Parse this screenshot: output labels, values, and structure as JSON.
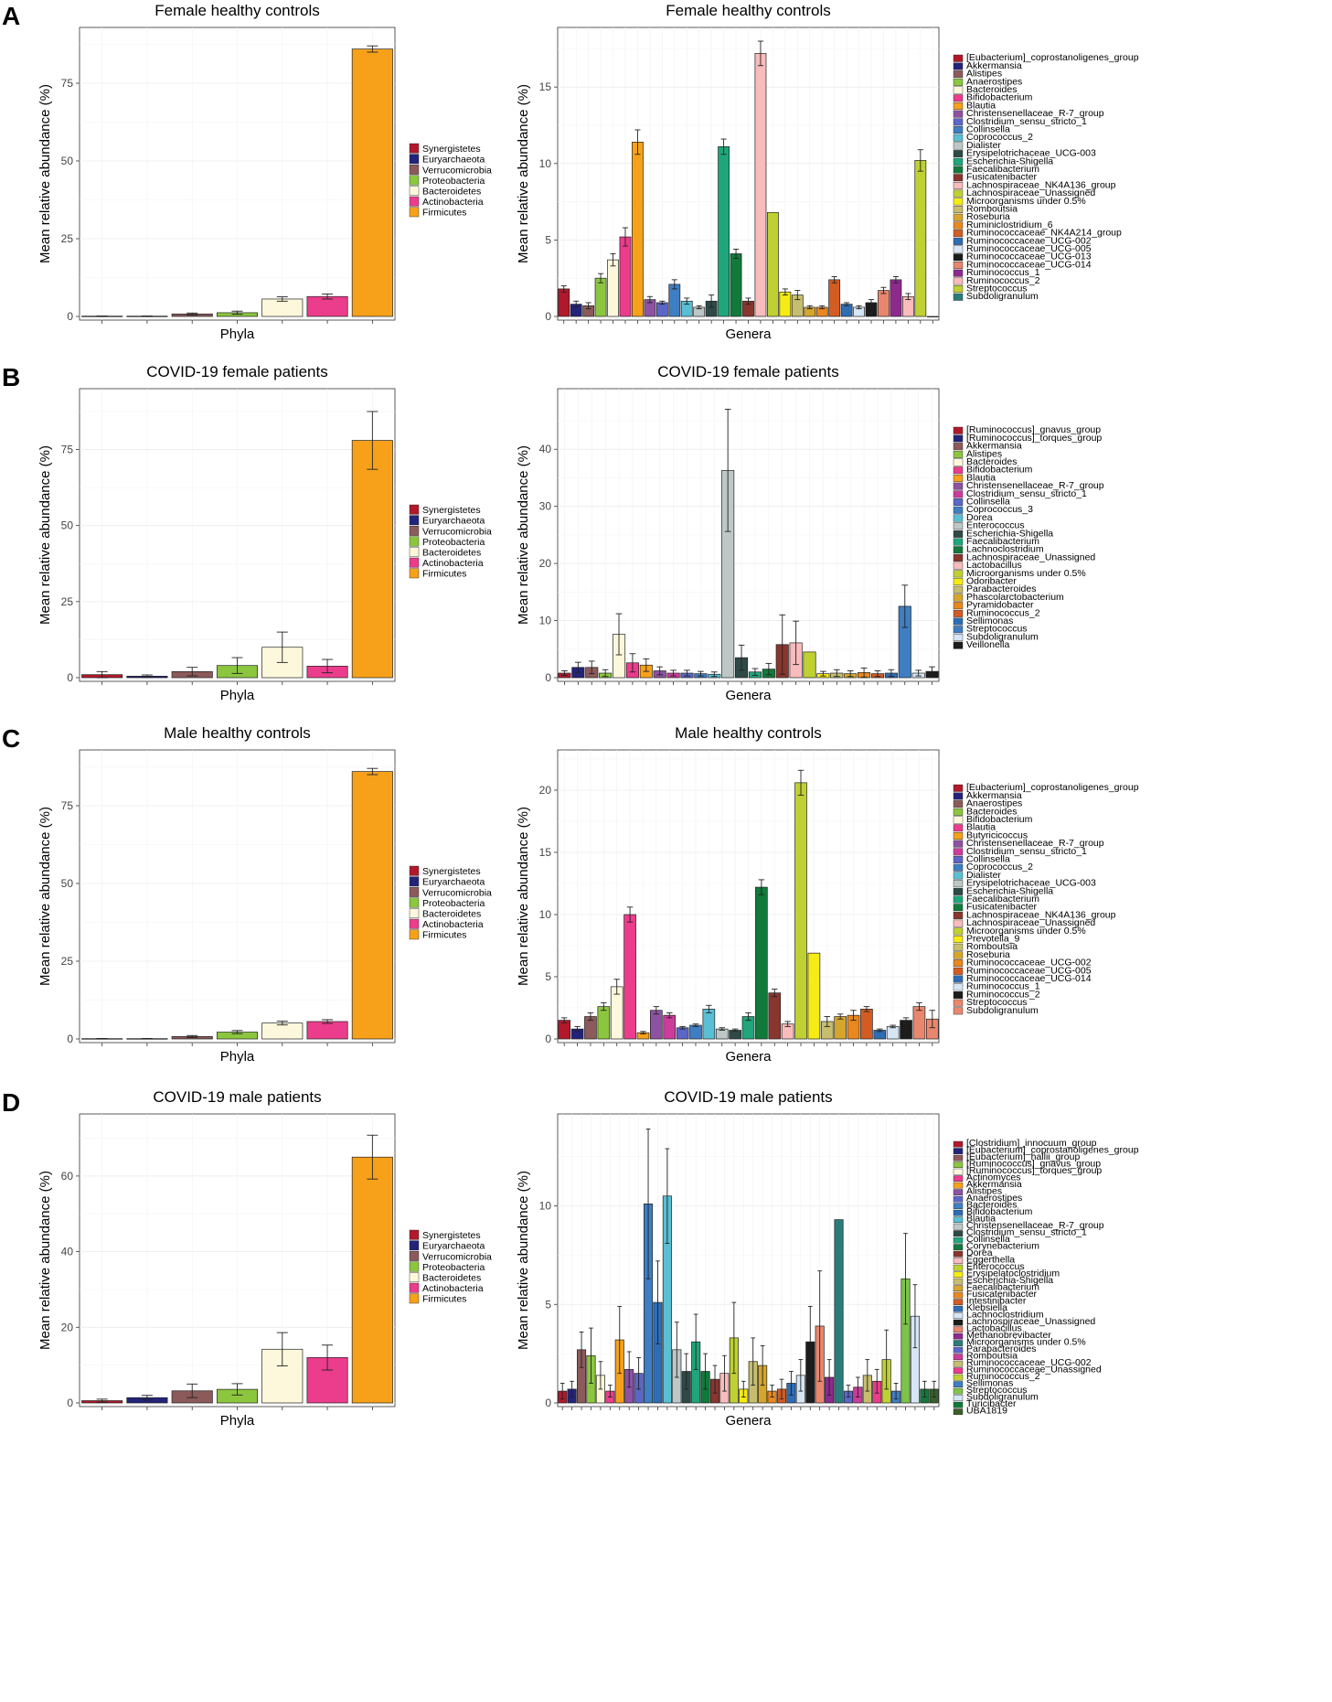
{
  "colors": {
    "Synergistetes": "#B2182B",
    "Euryarchaeota": "#23237A",
    "Verrucomicrobia": "#8C5A5A",
    "Proteobacteria": "#8CC63F",
    "Bacteroidetes": "#FDF8DC",
    "Actinobacteria": "#EC3C8C",
    "Firmicutes": "#F7A11A"
  },
  "genus_palette": [
    "#B2182B",
    "#23237A",
    "#8C5A5A",
    "#8CC63F",
    "#FDF8DC",
    "#EC3C8C",
    "#F7A11A",
    "#8E52A2",
    "#5C66C8",
    "#3F7EC3",
    "#59BFD4",
    "#BDC8C6",
    "#2E4A48",
    "#1FA67A",
    "#117A3B",
    "#88362E",
    "#F9BBBB",
    "#BFD132",
    "#F6EB14",
    "#C6BE6E",
    "#D6A62C",
    "#E8881E",
    "#D35C22",
    "#2E6DB4",
    "#D6E6F4",
    "#1C1C1C",
    "#E8876E",
    "#8E2A8E",
    "#2A7C7C",
    "#3A5E2A"
  ],
  "panels": [
    {
      "letter": "A",
      "phyla_chart": {
        "type": "bar",
        "title": "Female healthy controls",
        "xlabel": "Phyla",
        "ylabel": "Mean relative abundance (%)",
        "ylim": [
          0,
          90
        ],
        "yticks": [
          0,
          25,
          50,
          75
        ],
        "categories": [
          "Synergistetes",
          "Euryarchaeota",
          "Verrucomicrobia",
          "Proteobacteria",
          "Bacteroidetes",
          "Actinobacteria",
          "Firmicutes"
        ],
        "values": [
          0.1,
          0.1,
          0.8,
          1.2,
          5.6,
          6.4,
          86.0
        ],
        "errors": [
          0.05,
          0.05,
          0.3,
          0.5,
          0.7,
          0.8,
          1.0
        ]
      },
      "genera_chart": {
        "type": "bar",
        "title": "Female healthy controls",
        "xlabel": "Genera",
        "ylabel": "Mean relative abundance (%)",
        "ylim": [
          0,
          18.3
        ],
        "yticks": [
          0,
          5,
          10,
          15
        ],
        "categories": [
          "[Eubacterium]_coprostanoligenes_group",
          "Akkermansia",
          "Alistipes",
          "Anaerostipes",
          "Bacteroides",
          "Bifidobacterium",
          "Blautia",
          "Christensenellaceae_R-7_group",
          "Clostridium_sensu_stricto_1",
          "Collinsella",
          "Coprococcus_2",
          "Dialister",
          "Erysipelotrichaceae_UCG-003",
          "Escherichia-Shigella",
          "Faecalibacterium",
          "Fusicatenibacter",
          "Lachnospiraceae_NK4A136_group",
          "Lachnospiraceae_Unassigned",
          "Microorganisms under 0.5%",
          "Romboutsia",
          "Roseburia",
          "Ruminiclostridium_6",
          "Ruminococcaceae_NK4A214_group",
          "Ruminococcaceae_UCG-002",
          "Ruminococcaceae_UCG-005",
          "Ruminococcaceae_UCG-013",
          "Ruminococcaceae_UCG-014",
          "Ruminococcus_1",
          "Ruminococcus_2",
          "Streptococcus",
          "Subdoligranulum"
        ],
        "colors": [
          "#B2182B",
          "#23237A",
          "#8C5A5A",
          "#8CC63F",
          "#FDF8DC",
          "#EC3C8C",
          "#F7A11A",
          "#8E52A2",
          "#5C66C8",
          "#3F7EC3",
          "#59BFD4",
          "#BDC8C6",
          "#2E4A48",
          "#1FA67A",
          "#117A3B",
          "#88362E",
          "#F9BBBB",
          "#BFD132",
          "#F6EB14",
          "#C6BE6E",
          "#D6A62C",
          "#E8881E",
          "#D35C22",
          "#2E6DB4",
          "#D6E6F4",
          "#1C1C1C",
          "#E8876E",
          "#8E2A8E",
          "#F9BBBB",
          "#BFD132",
          "#2A7C7C"
        ],
        "values": [
          1.8,
          0.8,
          0.7,
          2.5,
          3.7,
          5.2,
          11.4,
          1.1,
          0.9,
          2.1,
          1.0,
          0.6,
          1.0,
          11.1,
          4.1,
          1.0,
          17.2,
          6.8,
          1.6,
          1.4,
          0.6,
          0.6,
          2.4,
          0.8,
          0.6,
          0.9,
          1.7,
          2.4,
          1.3,
          10.2,
          0.0
        ],
        "errors": [
          0.2,
          0.2,
          0.2,
          0.3,
          0.4,
          0.6,
          0.8,
          0.2,
          0.1,
          0.3,
          0.2,
          0.1,
          0.4,
          0.5,
          0.3,
          0.2,
          0.8,
          0.0,
          0.2,
          0.3,
          0.1,
          0.1,
          0.2,
          0.1,
          0.1,
          0.2,
          0.2,
          0.2,
          0.2,
          0.7,
          0.0
        ]
      }
    },
    {
      "letter": "B",
      "phyla_chart": {
        "type": "bar",
        "title": "COVID-19 female patients",
        "xlabel": "Phyla",
        "ylabel": "Mean relative abundance (%)",
        "ylim": [
          0,
          92
        ],
        "yticks": [
          0,
          25,
          50,
          75
        ],
        "categories": [
          "Synergistetes",
          "Euryarchaeota",
          "Verrucomicrobia",
          "Proteobacteria",
          "Bacteroidetes",
          "Actinobacteria",
          "Firmicutes"
        ],
        "values": [
          1.0,
          0.5,
          2.0,
          4.0,
          10.0,
          3.8,
          78.0
        ],
        "errors": [
          1.0,
          0.4,
          1.4,
          2.6,
          5.0,
          2.2,
          9.5
        ]
      },
      "genera_chart": {
        "type": "bar",
        "title": "COVID-19 female patients",
        "xlabel": "Genera",
        "ylabel": "Mean relative abundance (%)",
        "ylim": [
          0,
          49
        ],
        "yticks": [
          0,
          10,
          20,
          30,
          40
        ],
        "categories": [
          "[Ruminococcus]_gnavus_group",
          "[Ruminococcus]_torques_group",
          "Akkermansia",
          "Alistipes",
          "Bacteroides",
          "Bifidobacterium",
          "Blautia",
          "Christensenellaceae_R-7_group",
          "Clostridium_sensu_stricto_1",
          "Collinsella",
          "Coprococcus_3",
          "Dorea",
          "Enterococcus",
          "Escherichia-Shigella",
          "Faecalibacterium",
          "Lachnoclostridium",
          "Lachnospiraceae_Unassigned",
          "Lactobacillus",
          "Microorganisms under 0.5%",
          "Odoribacter",
          "Parabacteroides",
          "Phascolarctobacterium",
          "Pyramidobacter",
          "Ruminococcus_2",
          "Sellimonas",
          "Streptococcus",
          "Subdoligranulum",
          "Veillonella"
        ],
        "colors": [
          "#B2182B",
          "#23237A",
          "#8C5A5A",
          "#8CC63F",
          "#FDF8DC",
          "#EC3C8C",
          "#F7A11A",
          "#8E52A2",
          "#CC3C9C",
          "#5C66C8",
          "#3F7EC3",
          "#59BFD4",
          "#BDC8C6",
          "#2E4A48",
          "#1FA67A",
          "#117A3B",
          "#88362E",
          "#F9BBBB",
          "#BFD132",
          "#F6EB14",
          "#C6BE6E",
          "#D6A62C",
          "#E8881E",
          "#D35C22",
          "#2E6DB4",
          "#3F7EC3",
          "#D6E6F4",
          "#1C1C1C"
        ],
        "values": [
          0.8,
          1.8,
          1.8,
          0.8,
          7.6,
          2.6,
          2.2,
          1.2,
          0.8,
          0.8,
          0.7,
          0.6,
          36.3,
          3.5,
          1.0,
          1.5,
          5.8,
          6.1,
          4.5,
          0.7,
          0.8,
          0.7,
          0.9,
          0.7,
          0.8,
          12.5,
          0.8,
          1.1
        ],
        "errors": [
          0.4,
          0.9,
          1.1,
          0.6,
          3.6,
          1.6,
          1.1,
          0.7,
          0.5,
          0.5,
          0.4,
          0.4,
          10.7,
          2.2,
          0.6,
          1.0,
          5.2,
          3.8,
          0.0,
          0.4,
          0.6,
          0.5,
          0.8,
          0.5,
          0.6,
          3.7,
          0.5,
          0.8
        ]
      }
    },
    {
      "letter": "C",
      "phyla_chart": {
        "type": "bar",
        "title": "Male healthy controls",
        "xlabel": "Phyla",
        "ylabel": "Mean relative abundance (%)",
        "ylim": [
          0,
          90
        ],
        "yticks": [
          0,
          25,
          50,
          75
        ],
        "categories": [
          "Synergistetes",
          "Euryarchaeota",
          "Verrucomicrobia",
          "Proteobacteria",
          "Bacteroidetes",
          "Actinobacteria",
          "Firmicutes"
        ],
        "values": [
          0.1,
          0.1,
          0.8,
          2.2,
          5.1,
          5.6,
          86.0
        ],
        "errors": [
          0.05,
          0.05,
          0.3,
          0.5,
          0.6,
          0.6,
          1.0
        ]
      },
      "genera_chart": {
        "type": "bar",
        "title": "Male healthy controls",
        "xlabel": "Genera",
        "ylabel": "Mean relative abundance (%)",
        "ylim": [
          0,
          22.5
        ],
        "yticks": [
          0,
          5,
          10,
          15,
          20
        ],
        "categories": [
          "[Eubacterium]_coprostanoligenes_group",
          "Akkermansia",
          "Anaerostipes",
          "Bacteroides",
          "Bifidobacterium",
          "Blautia",
          "Butyricicoccus",
          "Christensenellaceae_R-7_group",
          "Clostridium_sensu_stricto_1",
          "Collinsella",
          "Coprococcus_2",
          "Dialister",
          "Erysipelotrichaceae_UCG-003",
          "Escherichia-Shigella",
          "Faecalibacterium",
          "Fusicatenibacter",
          "Lachnospiraceae_NK4A136_group",
          "Lachnospiraceae_Unassigned",
          "Microorganisms under 0.5%",
          "Prevotella_9",
          "Romboutsia",
          "Roseburia",
          "Ruminococcaceae_UCG-002",
          "Ruminococcaceae_UCG-005",
          "Ruminococcaceae_UCG-014",
          "Ruminococcus_1",
          "Ruminococcus_2",
          "Streptococcus",
          "Subdoligranulum"
        ],
        "colors": [
          "#B2182B",
          "#23237A",
          "#8C5A5A",
          "#8CC63F",
          "#FDF8DC",
          "#EC3C8C",
          "#F7A11A",
          "#8E52A2",
          "#CC3C9C",
          "#5C66C8",
          "#3F7EC3",
          "#59BFD4",
          "#BDC8C6",
          "#2E4A48",
          "#1FA67A",
          "#117A3B",
          "#88362E",
          "#F9BBBB",
          "#BFD132",
          "#F6EB14",
          "#C6BE6E",
          "#D6A62C",
          "#E8881E",
          "#D35C22",
          "#2E6DB4",
          "#D6E6F4",
          "#1C1C1C",
          "#E8876E",
          "#E8876E"
        ],
        "values": [
          1.5,
          0.8,
          1.8,
          2.6,
          4.2,
          10.0,
          0.5,
          2.3,
          1.9,
          0.9,
          1.1,
          2.4,
          0.8,
          0.7,
          1.8,
          12.2,
          3.7,
          1.2,
          20.6,
          6.9,
          1.4,
          1.8,
          1.9,
          2.4,
          0.7,
          1.0,
          1.5,
          2.6,
          1.6
        ],
        "errors": [
          0.2,
          0.2,
          0.3,
          0.3,
          0.6,
          0.6,
          0.1,
          0.3,
          0.2,
          0.1,
          0.1,
          0.3,
          0.1,
          0.1,
          0.3,
          0.6,
          0.3,
          0.2,
          1.0,
          0.0,
          0.4,
          0.2,
          0.4,
          0.2,
          0.1,
          0.1,
          0.2,
          0.3,
          0.7
        ]
      }
    },
    {
      "letter": "D",
      "phyla_chart": {
        "type": "bar",
        "title": "COVID-19 male patients",
        "xlabel": "Phyla",
        "ylabel": "Mean relative abundance (%)",
        "ylim": [
          0,
          74
        ],
        "yticks": [
          0,
          20,
          40,
          60
        ],
        "categories": [
          "Synergistetes",
          "Euryarchaeota",
          "Verrucomicrobia",
          "Proteobacteria",
          "Bacteroidetes",
          "Actinobacteria",
          "Firmicutes"
        ],
        "values": [
          0.6,
          1.4,
          3.2,
          3.6,
          14.2,
          12.0,
          65.0
        ],
        "errors": [
          0.4,
          0.6,
          1.8,
          1.5,
          4.4,
          3.3,
          5.8
        ]
      },
      "genera_chart": {
        "type": "bar",
        "title": "COVID-19 male patients",
        "xlabel": "Genera",
        "ylabel": "Mean relative abundance (%)",
        "ylim": [
          0,
          14.2
        ],
        "yticks": [
          0,
          5,
          10
        ],
        "categories": [
          "[Clostridium]_innocuum_group",
          "[Eubacterium]_coprostanoligenes_group",
          "[Eubacterium]_hallii_group",
          "[Ruminococcus]_gnavus_group",
          "[Ruminococcus]_torques_group",
          "Actinomyces",
          "Akkermansia",
          "Alistipes",
          "Anaerostipes",
          "Bacteroides",
          "Bifidobacterium",
          "Blautia",
          "Christensenellaceae_R-7_group",
          "Clostridium_sensu_stricto_1",
          "Collinsella",
          "Corynebacterium",
          "Dorea",
          "Eggerthella",
          "Enterococcus",
          "Erysipelatoclostridium",
          "Escherichia-Shigella",
          "Faecalibacterium",
          "Fusicatenibacter",
          "Intestinibacter",
          "Klebsiella",
          "Lachnoclostridium",
          "Lachnospiraceae_Unassigned",
          "Lactobacillus",
          "Methanobrevibacter",
          "Microorganisms under 0.5%",
          "Parabacteroides",
          "Romboutsia",
          "Ruminococcaceae_UCG-002",
          "Ruminococcaceae_Unassigned",
          "Ruminococcus_2",
          "Sellimonas",
          "Streptococcus",
          "Subdoligranulum",
          "Turicibacter",
          "UBA1819"
        ],
        "colors": [
          "#B2182B",
          "#23237A",
          "#8C5A5A",
          "#8CC63F",
          "#FDF8DC",
          "#EC3C8C",
          "#F7A11A",
          "#8E52A2",
          "#5C66C8",
          "#3F7EC3",
          "#2E6DB4",
          "#59BFD4",
          "#BDC8C6",
          "#2E4A48",
          "#1FA67A",
          "#117A3B",
          "#88362E",
          "#F9BBBB",
          "#BFD132",
          "#F6EB14",
          "#C6BE6E",
          "#D6A62C",
          "#E8881E",
          "#D35C22",
          "#2E6DB4",
          "#D6E6F4",
          "#1C1C1C",
          "#E8876E",
          "#8E2A8E",
          "#2A7C7C",
          "#5C66C8",
          "#CC3C9C",
          "#C6BE6E",
          "#EC3C8C",
          "#BFD132",
          "#3F7EC3",
          "#7EC34A",
          "#D6E6F4",
          "#117A3B",
          "#3A5E2A"
        ],
        "values": [
          0.6,
          0.7,
          2.7,
          2.4,
          1.4,
          0.6,
          3.2,
          1.7,
          1.5,
          10.1,
          5.1,
          10.5,
          2.7,
          1.6,
          3.1,
          1.6,
          1.2,
          1.5,
          3.3,
          0.7,
          2.1,
          1.9,
          0.6,
          0.7,
          1.0,
          1.4,
          3.1,
          3.9,
          1.3,
          9.3,
          0.6,
          0.8,
          1.4,
          1.1,
          2.2,
          0.6,
          6.3,
          4.4,
          0.7,
          0.7
        ],
        "errors": [
          0.4,
          0.4,
          0.9,
          1.4,
          0.7,
          0.3,
          1.7,
          0.9,
          0.8,
          3.8,
          2.1,
          2.4,
          1.4,
          0.9,
          1.4,
          0.9,
          0.7,
          0.9,
          1.8,
          0.4,
          1.2,
          1.0,
          0.3,
          0.5,
          0.6,
          0.8,
          1.8,
          2.8,
          0.9,
          0.0,
          0.3,
          0.5,
          0.8,
          0.6,
          1.5,
          0.4,
          2.3,
          1.6,
          0.4,
          0.4
        ]
      }
    }
  ]
}
